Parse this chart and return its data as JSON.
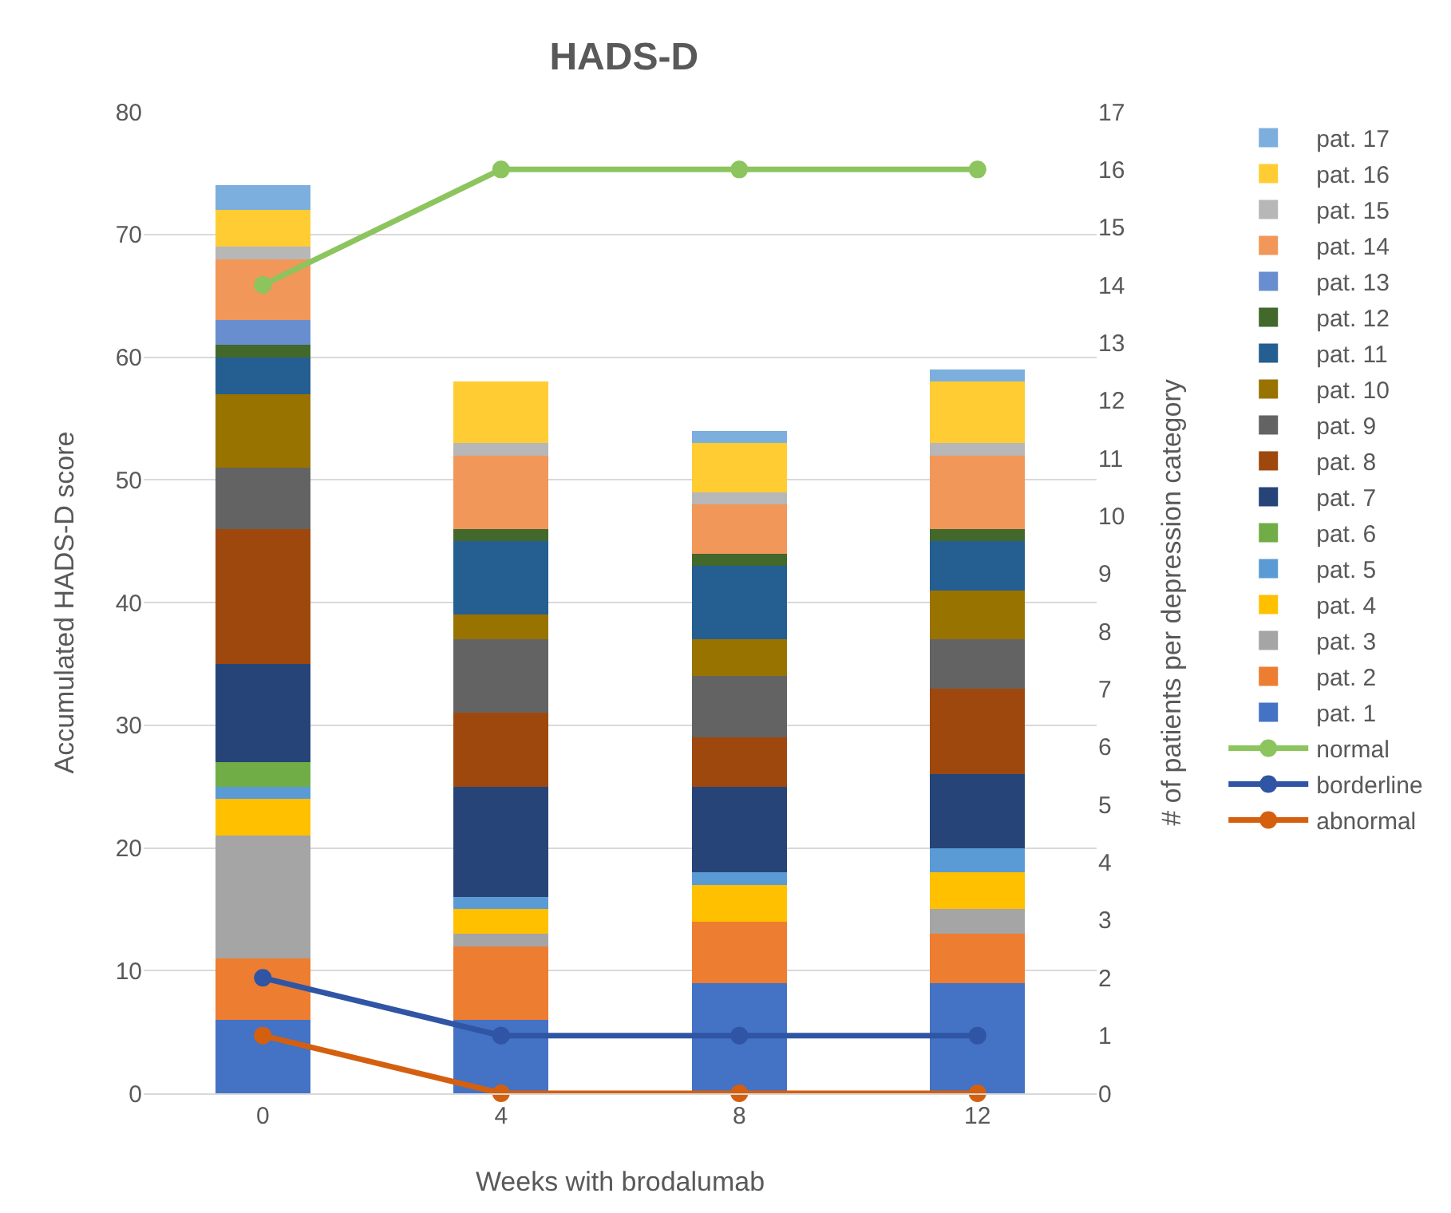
{
  "chart_data": {
    "type": "bar",
    "stacked": true,
    "title": "HADS-D",
    "xlabel": "Weeks with brodalumab",
    "ylabel": "Accumulated HADS-D score",
    "y2label": "# of patients per depression category",
    "categories": [
      "0",
      "4",
      "8",
      "12"
    ],
    "ylim": [
      0,
      80
    ],
    "yticks": [
      0,
      10,
      20,
      30,
      40,
      50,
      60,
      70,
      80
    ],
    "y2lim": [
      0,
      17
    ],
    "y2ticks": [
      0,
      1,
      2,
      3,
      4,
      5,
      6,
      7,
      8,
      9,
      10,
      11,
      12,
      13,
      14,
      15,
      16,
      17
    ],
    "grid": "y",
    "legend": "right",
    "marker": "circle",
    "series": [
      {
        "name": "pat. 1",
        "color": "#4472c4",
        "values": [
          6,
          6,
          9,
          9
        ]
      },
      {
        "name": "pat. 2",
        "color": "#ed7d31",
        "values": [
          5,
          6,
          5,
          4
        ]
      },
      {
        "name": "pat. 3",
        "color": "#a5a5a5",
        "values": [
          10,
          1,
          0,
          2
        ]
      },
      {
        "name": "pat. 4",
        "color": "#ffc000",
        "values": [
          3,
          2,
          3,
          3
        ]
      },
      {
        "name": "pat. 5",
        "color": "#5b9bd5",
        "values": [
          1,
          1,
          1,
          2
        ]
      },
      {
        "name": "pat. 6",
        "color": "#70ad47",
        "values": [
          2,
          0,
          0,
          0
        ]
      },
      {
        "name": "pat. 7",
        "color": "#264478",
        "values": [
          8,
          9,
          7,
          6
        ]
      },
      {
        "name": "pat. 8",
        "color": "#9e480e",
        "values": [
          11,
          6,
          4,
          7
        ]
      },
      {
        "name": "pat. 9",
        "color": "#636363",
        "values": [
          5,
          6,
          5,
          4
        ]
      },
      {
        "name": "pat. 10",
        "color": "#997300",
        "values": [
          6,
          2,
          3,
          4
        ]
      },
      {
        "name": "pat. 11",
        "color": "#255e91",
        "values": [
          3,
          6,
          6,
          4
        ]
      },
      {
        "name": "pat. 12",
        "color": "#43682b",
        "values": [
          1,
          1,
          1,
          1
        ]
      },
      {
        "name": "pat. 13",
        "color": "#698ed0",
        "values": [
          2,
          0,
          0,
          0
        ]
      },
      {
        "name": "pat. 14",
        "color": "#f1975a",
        "values": [
          5,
          6,
          4,
          6
        ]
      },
      {
        "name": "pat. 15",
        "color": "#b7b7b7",
        "values": [
          1,
          1,
          1,
          1
        ]
      },
      {
        "name": "pat. 16",
        "color": "#ffcd33",
        "values": [
          3,
          5,
          4,
          5
        ]
      },
      {
        "name": "pat. 17",
        "color": "#7cafdd",
        "values": [
          2,
          0,
          1,
          1
        ]
      },
      {
        "name": "normal",
        "type": "line",
        "axis": "y2",
        "color": "#8cc45e",
        "values": [
          14,
          16,
          16,
          16
        ]
      },
      {
        "name": "borderline",
        "type": "line",
        "axis": "y2",
        "color": "#2f55a4",
        "values": [
          2,
          1,
          1,
          1
        ]
      },
      {
        "name": "abnormal",
        "type": "line",
        "axis": "y2",
        "color": "#d4600f",
        "values": [
          1,
          0,
          0,
          0
        ]
      }
    ]
  }
}
